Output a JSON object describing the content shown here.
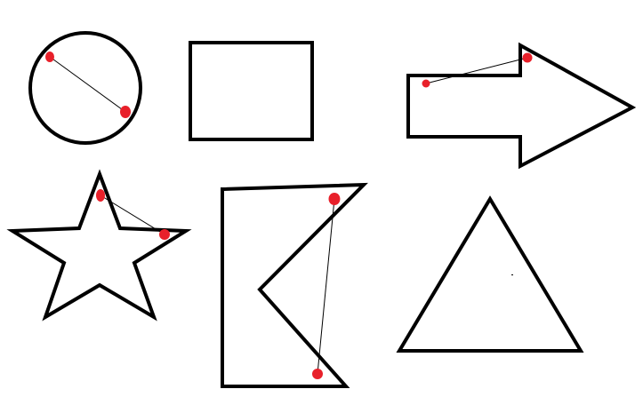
{
  "canvas": {
    "background": "#ffffff",
    "stroke_color": "#000000",
    "marker_color": "#e8202a"
  },
  "shapes": [
    {
      "name": "circle-shape",
      "kind": "circle",
      "has_chord": true,
      "marker_count": 2
    },
    {
      "name": "rectangle-shape",
      "kind": "rectangle",
      "has_chord": false,
      "marker_count": 0
    },
    {
      "name": "arrow-shape",
      "kind": "arrow",
      "has_chord": true,
      "marker_count": 2
    },
    {
      "name": "star-shape",
      "kind": "star",
      "has_chord": true,
      "marker_count": 2
    },
    {
      "name": "concave-polygon-shape",
      "kind": "concave-polygon",
      "has_chord": true,
      "marker_count": 2
    },
    {
      "name": "triangle-shape",
      "kind": "triangle",
      "has_chord": false,
      "marker_count": 0
    }
  ]
}
